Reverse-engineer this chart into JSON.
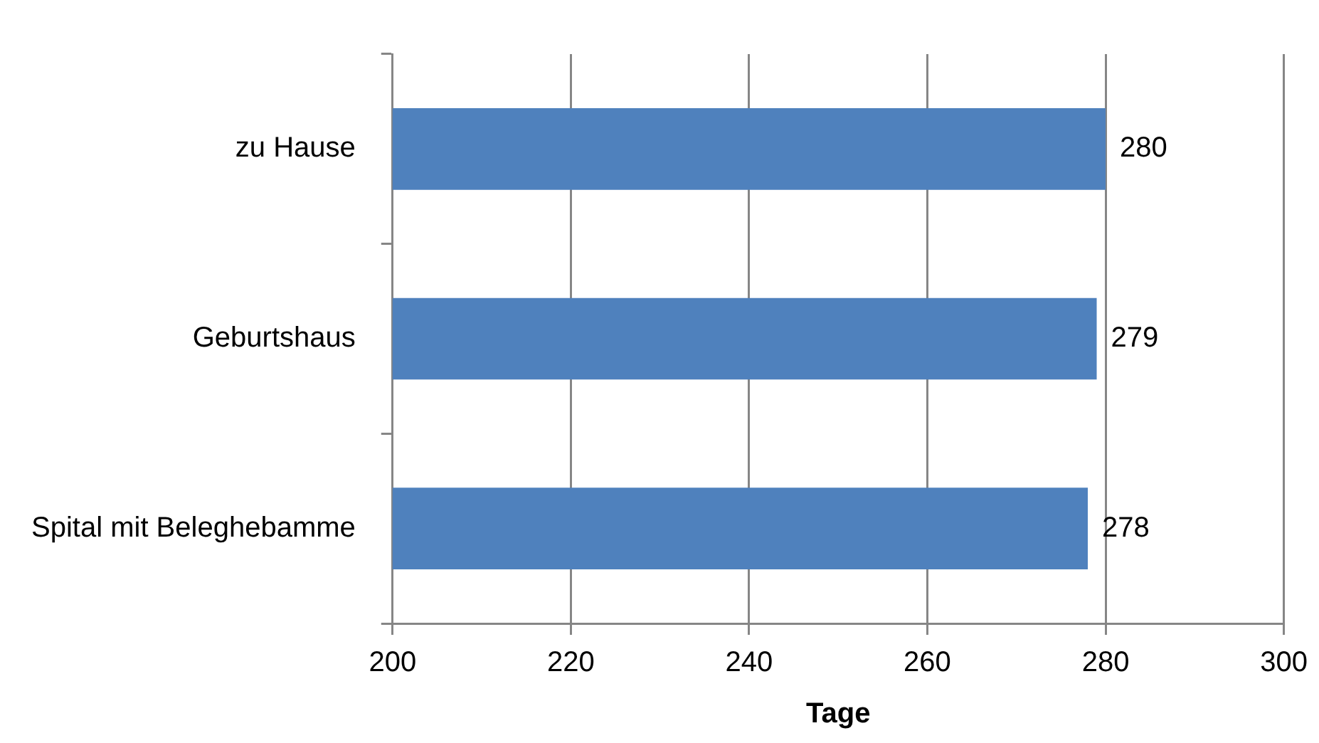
{
  "chart_data": {
    "type": "bar",
    "orientation": "horizontal",
    "xlabel": "Tage",
    "categories": [
      "zu Hause",
      "Geburtshaus",
      "Spital mit Beleghebamme"
    ],
    "values": [
      280,
      279,
      278
    ],
    "color": "#4f81bd",
    "xlim": [
      200,
      300
    ],
    "xticks": [
      200,
      220,
      240,
      260,
      280,
      300
    ],
    "grid": "x",
    "data_labels": true
  }
}
